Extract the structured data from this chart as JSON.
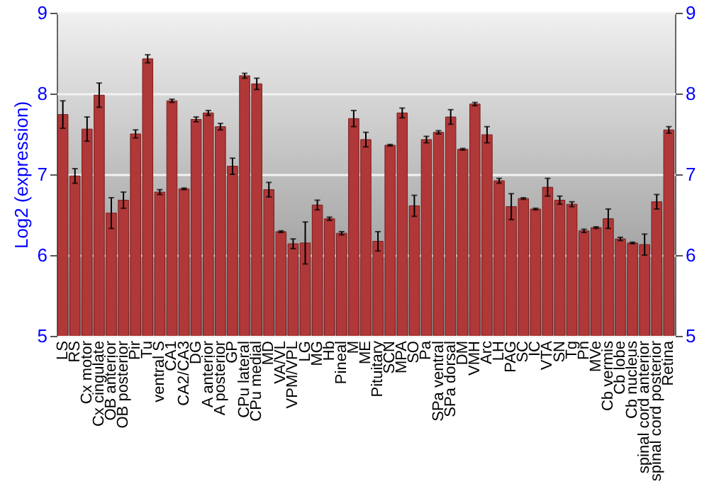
{
  "chart_data": {
    "type": "bar",
    "ylabel": "Log2 (expression)",
    "categories": [
      "LS",
      "RS",
      "Cx motor",
      "Cx cingulate",
      "OB anterior",
      "OB posterior",
      "Pir",
      "Tu",
      "ventral S",
      "CA1",
      "CA2/CA3",
      "DG",
      "A anterior",
      "A posterior",
      "GP",
      "CPu lateral",
      "CPu medial",
      "MD",
      "VA/VL",
      "VPM/VPL",
      "LG",
      "MG",
      "Hb",
      "Pineal",
      "M",
      "ME",
      "Pituitary",
      "SCN",
      "MPA",
      "SO",
      "Pa",
      "SPa ventral",
      "SPa dorsal",
      "DM",
      "VMH",
      "Arc",
      "LH",
      "PAG",
      "SC",
      "IC",
      "VTA",
      "SN",
      "Tg",
      "Pn",
      "MVe",
      "Cb vermis",
      "Cb lobe",
      "Cb nucleus",
      "spinal cord anterior",
      "spinal cord posterior",
      "Retina"
    ],
    "values": [
      7.74,
      6.98,
      7.56,
      7.98,
      6.52,
      6.68,
      7.5,
      8.43,
      6.78,
      7.91,
      6.82,
      7.68,
      7.76,
      7.59,
      7.1,
      8.22,
      8.12,
      6.81,
      6.29,
      6.14,
      6.15,
      6.62,
      6.45,
      6.27,
      7.69,
      7.43,
      6.17,
      7.36,
      7.76,
      6.61,
      7.43,
      7.52,
      7.71,
      7.31,
      7.87,
      7.49,
      6.92,
      6.6,
      6.7,
      6.57,
      6.84,
      6.68,
      6.63,
      6.3,
      6.34,
      6.45,
      6.2,
      6.15,
      6.13,
      6.66,
      7.55
    ],
    "errors": [
      0.17,
      0.09,
      0.15,
      0.15,
      0.19,
      0.1,
      0.05,
      0.05,
      0.03,
      0.02,
      0.01,
      0.03,
      0.03,
      0.04,
      0.1,
      0.03,
      0.07,
      0.09,
      0.01,
      0.06,
      0.26,
      0.06,
      0.02,
      0.02,
      0.1,
      0.09,
      0.12,
      0.01,
      0.06,
      0.13,
      0.04,
      0.02,
      0.09,
      0.01,
      0.02,
      0.1,
      0.03,
      0.16,
      0.01,
      0.01,
      0.11,
      0.05,
      0.03,
      0.02,
      0.01,
      0.12,
      0.02,
      0.01,
      0.13,
      0.09,
      0.04
    ],
    "color": "#b03838",
    "ylim": [
      5,
      9
    ],
    "yticks": [
      5,
      6,
      7,
      8,
      9
    ],
    "y2lim": [
      5,
      9
    ],
    "y2ticks": [
      5,
      6,
      7,
      8,
      9
    ],
    "grid": "y"
  }
}
